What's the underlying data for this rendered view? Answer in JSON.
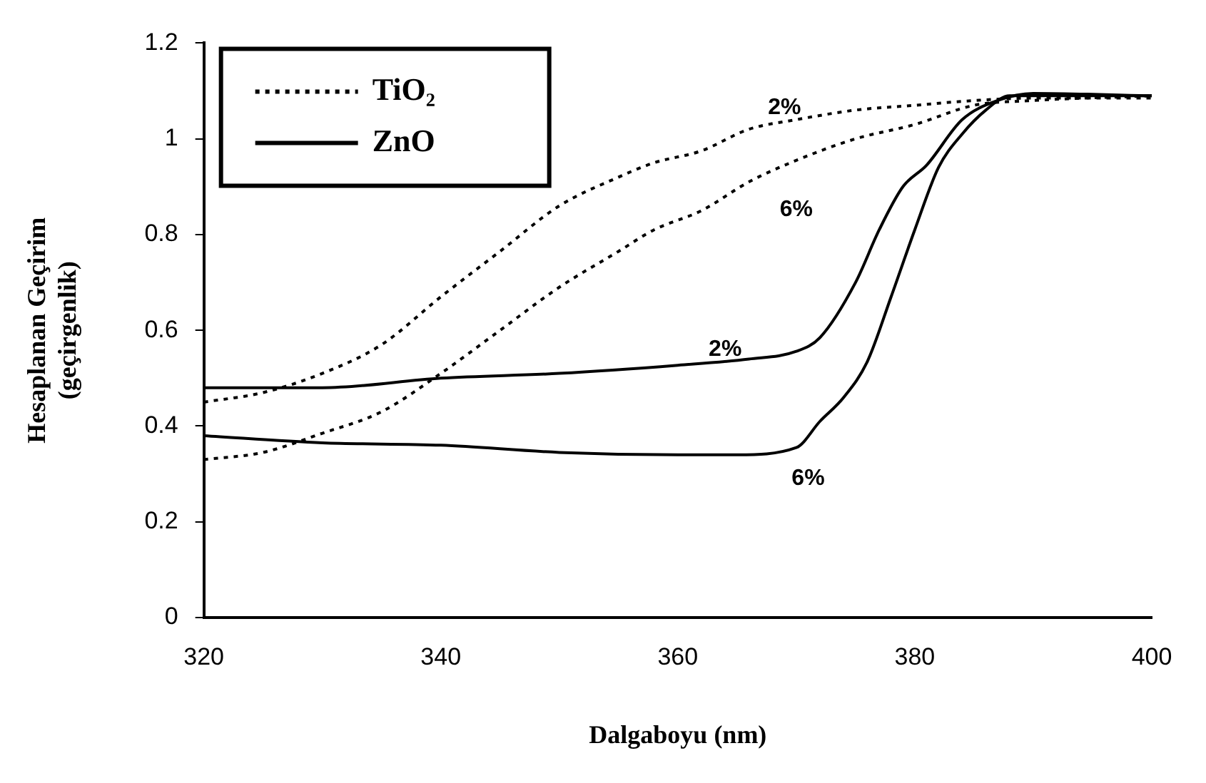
{
  "chart_data": {
    "type": "line",
    "xlabel": "Dalgaboyu (nm)",
    "ylabel": "Hesaplanan Geçirim\n(geçirgenlik)",
    "xlim": [
      320,
      400
    ],
    "xticks": [
      320,
      340,
      360,
      380,
      400
    ],
    "ylim": [
      0,
      1.2
    ],
    "yticks": [
      0,
      0.2,
      0.4,
      0.6,
      0.8,
      1,
      1.2
    ],
    "grid": false,
    "legend": "top left",
    "marker": "none",
    "series": [
      {
        "name": "TiO₂",
        "color": "#000000",
        "line_style": "dotted",
        "x": [
          320,
          325,
          330,
          335,
          340,
          345,
          350,
          355,
          358,
          362,
          366,
          370,
          375,
          380,
          385,
          390,
          400
        ],
        "values": [
          0.45,
          0.47,
          0.51,
          0.57,
          0.67,
          0.765,
          0.86,
          0.92,
          0.95,
          0.975,
          1.02,
          1.04,
          1.06,
          1.07,
          1.08,
          1.085,
          1.085
        ]
      },
      {
        "color": "#000000",
        "line_style": "dotted",
        "x": [
          320,
          325,
          330,
          335,
          340,
          345,
          350,
          355,
          358,
          362,
          366,
          370,
          375,
          380,
          385,
          390,
          400
        ],
        "values": [
          0.33,
          0.345,
          0.385,
          0.43,
          0.51,
          0.6,
          0.69,
          0.765,
          0.81,
          0.85,
          0.91,
          0.955,
          1.0,
          1.03,
          1.07,
          1.08,
          1.09
        ]
      },
      {
        "name": "ZnO",
        "color": "#000000",
        "line_style": "solid",
        "x": [
          320,
          330,
          340,
          350,
          360,
          366,
          370,
          372,
          375,
          377,
          379,
          381,
          384,
          387,
          390,
          400
        ],
        "values": [
          0.48,
          0.48,
          0.5,
          0.51,
          0.527,
          0.54,
          0.556,
          0.585,
          0.7,
          0.81,
          0.9,
          0.945,
          1.04,
          1.08,
          1.095,
          1.09
        ]
      },
      {
        "color": "#000000",
        "line_style": "solid",
        "x": [
          320,
          330,
          340,
          350,
          360,
          365,
          370,
          372,
          374,
          376,
          378,
          380,
          382,
          384,
          386,
          388,
          400
        ],
        "values": [
          0.38,
          0.365,
          0.36,
          0.345,
          0.34,
          0.34,
          0.355,
          0.41,
          0.46,
          0.535,
          0.67,
          0.81,
          0.94,
          1.01,
          1.06,
          1.09,
          1.09
        ]
      }
    ],
    "annotations": [
      "2%",
      "6%",
      "2%",
      "6%"
    ]
  }
}
